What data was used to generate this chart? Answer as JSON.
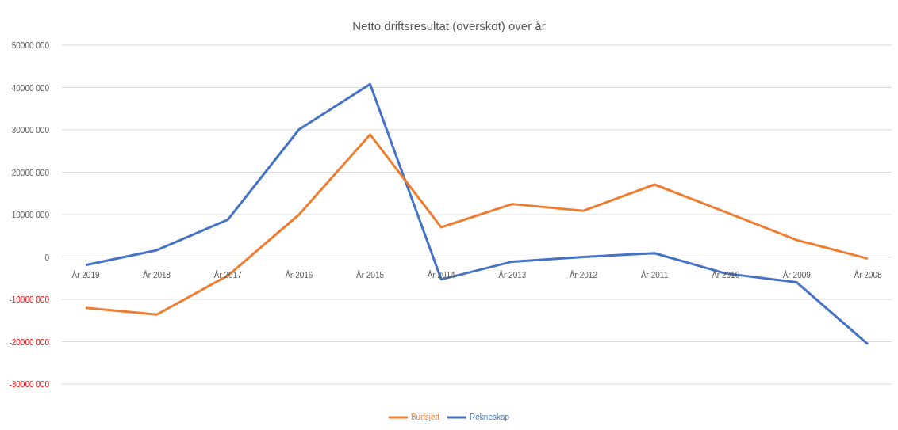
{
  "chart_data": {
    "type": "line",
    "title": "Netto driftsresultat (overskot) over år",
    "categories": [
      "År 2019",
      "År 2018",
      "År 2017",
      "År 2016",
      "År 2015",
      "År 2014",
      "År 2013",
      "År 2012",
      "År 2011",
      "År 2010",
      "År 2009",
      "År 2008"
    ],
    "series": [
      {
        "name": "Rekneskap",
        "color": "#4472c4",
        "values": [
          -1900000,
          1600000,
          8800000,
          30100000,
          40800000,
          -5300000,
          -1100000,
          0,
          900000,
          -3900000,
          -6000000,
          -20600000
        ]
      },
      {
        "name": "Budsjett",
        "color": "#ed7d31",
        "values": [
          -12000000,
          -13600000,
          -4400000,
          10000000,
          28900000,
          7000000,
          12500000,
          10900000,
          17100000,
          10600000,
          4000000,
          -400000
        ]
      }
    ],
    "ylim": [
      -30000000,
      50000000
    ],
    "yticks": [
      {
        "value": -30000000,
        "label": "-30000 000"
      },
      {
        "value": -20000000,
        "label": "-20000 000"
      },
      {
        "value": -10000000,
        "label": "-10000 000"
      },
      {
        "value": 0,
        "label": "0"
      },
      {
        "value": 10000000,
        "label": "10000 000"
      },
      {
        "value": 20000000,
        "label": "20000 000"
      },
      {
        "value": 30000000,
        "label": "30000 000"
      },
      {
        "value": 40000000,
        "label": "40000 000"
      },
      {
        "value": 50000000,
        "label": "50000 000"
      }
    ],
    "grid": "y",
    "legend": "bottom",
    "marker": "none",
    "line_style": "solid"
  }
}
